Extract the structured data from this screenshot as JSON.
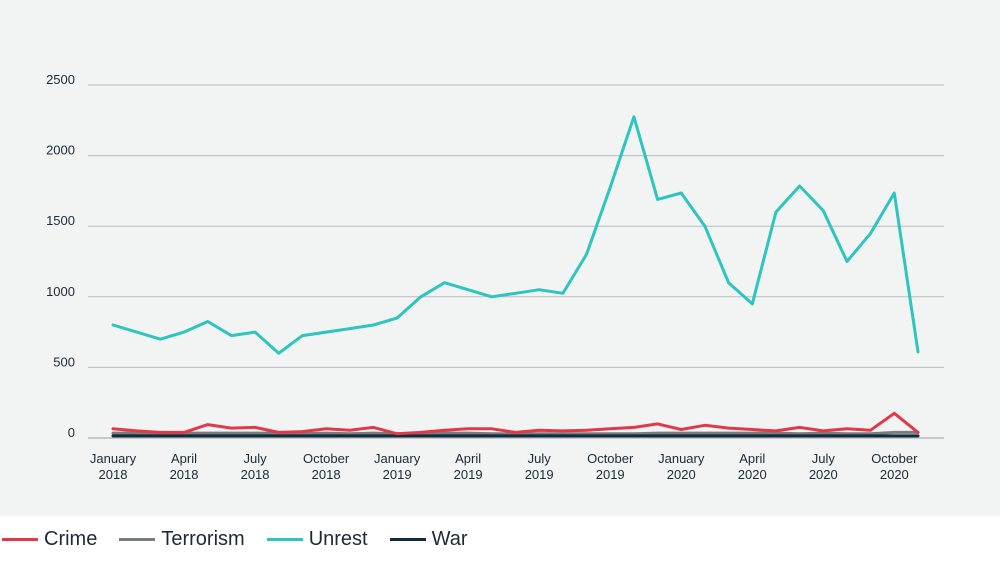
{
  "chart_data": {
    "type": "line",
    "title": "",
    "xlabel": "",
    "ylabel": "",
    "ylim": [
      0,
      2500
    ],
    "y_ticks": [
      0,
      500,
      1000,
      1500,
      2000,
      2500
    ],
    "grid": true,
    "legend_position": "bottom-left",
    "x": [
      "2018-01",
      "2018-02",
      "2018-03",
      "2018-04",
      "2018-05",
      "2018-06",
      "2018-07",
      "2018-08",
      "2018-09",
      "2018-10",
      "2018-11",
      "2018-12",
      "2019-01",
      "2019-02",
      "2019-03",
      "2019-04",
      "2019-05",
      "2019-06",
      "2019-07",
      "2019-08",
      "2019-09",
      "2019-10",
      "2019-11",
      "2019-12",
      "2020-01",
      "2020-02",
      "2020-03",
      "2020-04",
      "2020-05",
      "2020-06",
      "2020-07",
      "2020-08",
      "2020-09",
      "2020-10",
      "2020-11"
    ],
    "x_tick_labels": [
      {
        "index": 0,
        "month": "January",
        "year": "2018"
      },
      {
        "index": 3,
        "month": "April",
        "year": "2018"
      },
      {
        "index": 6,
        "month": "July",
        "year": "2018"
      },
      {
        "index": 9,
        "month": "October",
        "year": "2018"
      },
      {
        "index": 12,
        "month": "January",
        "year": "2019"
      },
      {
        "index": 15,
        "month": "April",
        "year": "2019"
      },
      {
        "index": 18,
        "month": "July",
        "year": "2019"
      },
      {
        "index": 21,
        "month": "October",
        "year": "2019"
      },
      {
        "index": 24,
        "month": "January",
        "year": "2020"
      },
      {
        "index": 27,
        "month": "April",
        "year": "2020"
      },
      {
        "index": 30,
        "month": "July",
        "year": "2020"
      },
      {
        "index": 33,
        "month": "October",
        "year": "2020"
      }
    ],
    "series": [
      {
        "name": "Crime",
        "color": "#e0394a",
        "values": [
          65,
          50,
          40,
          40,
          95,
          70,
          75,
          40,
          45,
          65,
          55,
          75,
          30,
          40,
          55,
          65,
          65,
          40,
          55,
          50,
          55,
          65,
          75,
          100,
          60,
          90,
          70,
          60,
          50,
          75,
          50,
          65,
          55,
          175,
          40
        ]
      },
      {
        "name": "Terrorism",
        "color": "#7a7d80",
        "values": [
          35,
          35,
          35,
          35,
          35,
          35,
          35,
          35,
          30,
          35,
          30,
          35,
          30,
          35,
          35,
          35,
          30,
          30,
          30,
          30,
          30,
          30,
          30,
          35,
          35,
          35,
          35,
          35,
          35,
          30,
          35,
          30,
          30,
          40,
          40
        ]
      },
      {
        "name": "Unrest",
        "color": "#2ec4bf",
        "values": [
          800,
          750,
          700,
          750,
          825,
          725,
          750,
          600,
          725,
          750,
          775,
          800,
          850,
          1000,
          1100,
          1050,
          1000,
          1025,
          1050,
          1025,
          1300,
          1775,
          2275,
          1690,
          1735,
          1500,
          1100,
          950,
          1600,
          1785,
          1610,
          1250,
          1450,
          1735,
          610
        ]
      },
      {
        "name": "War",
        "color": "#0f2d3e",
        "values": [
          15,
          15,
          15,
          15,
          15,
          15,
          15,
          15,
          15,
          15,
          15,
          15,
          15,
          15,
          15,
          15,
          15,
          15,
          15,
          15,
          15,
          15,
          15,
          15,
          15,
          15,
          15,
          15,
          15,
          15,
          15,
          15,
          15,
          15,
          15
        ]
      }
    ]
  }
}
